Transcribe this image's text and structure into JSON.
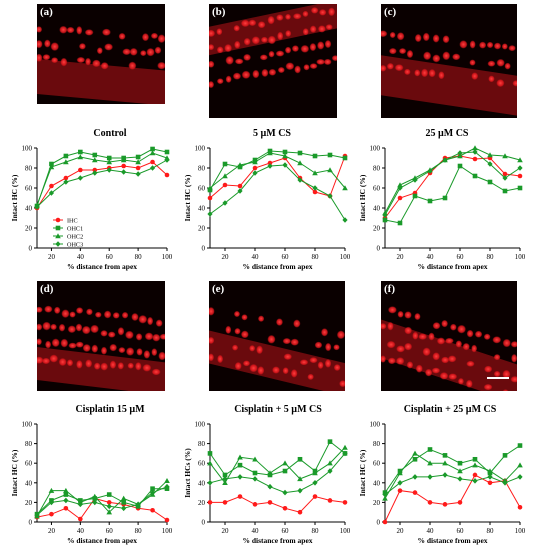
{
  "panels": [
    {
      "label": "(a)"
    },
    {
      "label": "(b)"
    },
    {
      "label": "(c)"
    },
    {
      "label": "(d)"
    },
    {
      "label": "(e)"
    },
    {
      "label": "(f)"
    }
  ],
  "colors": {
    "ihc": "#ff1a1a",
    "ohc": "#1a9a2a",
    "micro_bg": "#0a0000",
    "micro_cell": "#e0161c"
  },
  "chart_data": [
    {
      "type": "line",
      "title": "Control",
      "xlabel": "%  distance from apex",
      "ylabel": "Intact HC (%)",
      "xlim": [
        10,
        100
      ],
      "ylim": [
        0,
        100
      ],
      "xticks": [
        20,
        40,
        60,
        80,
        100
      ],
      "yticks": [
        0,
        20,
        40,
        60,
        80,
        100
      ],
      "legend": {
        "position": "bottom-left-inside",
        "entries": [
          "IHC",
          "OHC1",
          "OHC2",
          "OHC3"
        ]
      },
      "x": [
        10,
        20,
        30,
        40,
        50,
        60,
        70,
        80,
        90,
        100
      ],
      "series": [
        {
          "name": "IHC",
          "marker": "circle",
          "values": [
            40,
            62,
            70,
            78,
            78,
            80,
            82,
            80,
            86,
            73
          ]
        },
        {
          "name": "OHC1",
          "marker": "square",
          "values": [
            42,
            84,
            92,
            96,
            93,
            90,
            90,
            91,
            99,
            96
          ]
        },
        {
          "name": "OHC2",
          "marker": "triangle",
          "values": [
            43,
            81,
            86,
            91,
            88,
            86,
            88,
            86,
            95,
            90
          ]
        },
        {
          "name": "OHC3",
          "marker": "diamond",
          "values": [
            41,
            55,
            66,
            70,
            75,
            78,
            76,
            74,
            80,
            88
          ]
        }
      ]
    },
    {
      "type": "line",
      "title": "5 µM CS",
      "xlabel": "%  distance from apex",
      "ylabel": "Intact HC (%)",
      "xlim": [
        10,
        100
      ],
      "ylim": [
        0,
        100
      ],
      "xticks": [
        20,
        40,
        60,
        80,
        100
      ],
      "yticks": [
        0,
        20,
        40,
        60,
        80,
        100
      ],
      "x": [
        10,
        20,
        30,
        40,
        50,
        60,
        70,
        80,
        90,
        100
      ],
      "series": [
        {
          "name": "IHC",
          "marker": "circle",
          "values": [
            50,
            63,
            62,
            80,
            85,
            90,
            70,
            56,
            52,
            92
          ]
        },
        {
          "name": "OHC1",
          "marker": "square",
          "values": [
            58,
            84,
            81,
            88,
            97,
            96,
            95,
            92,
            93,
            90
          ]
        },
        {
          "name": "OHC2",
          "marker": "triangle",
          "values": [
            60,
            72,
            83,
            86,
            95,
            92,
            85,
            75,
            78,
            60
          ]
        },
        {
          "name": "OHC3",
          "marker": "diamond",
          "values": [
            34,
            45,
            57,
            75,
            82,
            83,
            68,
            60,
            52,
            28
          ]
        }
      ]
    },
    {
      "type": "line",
      "title": "25 µM CS",
      "xlabel": "%  distance from apex",
      "ylabel": "Intact HC (%)",
      "xlim": [
        10,
        100
      ],
      "ylim": [
        0,
        100
      ],
      "xticks": [
        20,
        40,
        60,
        80,
        100
      ],
      "yticks": [
        0,
        20,
        40,
        60,
        80,
        100
      ],
      "x": [
        10,
        20,
        30,
        40,
        50,
        60,
        70,
        80,
        90,
        100
      ],
      "series": [
        {
          "name": "IHC",
          "marker": "circle",
          "values": [
            30,
            50,
            55,
            75,
            90,
            92,
            89,
            90,
            74,
            72
          ]
        },
        {
          "name": "OHC1",
          "marker": "square",
          "values": [
            28,
            25,
            52,
            47,
            50,
            82,
            72,
            66,
            57,
            60
          ]
        },
        {
          "name": "OHC2",
          "marker": "triangle",
          "values": [
            35,
            63,
            70,
            78,
            88,
            92,
            100,
            93,
            92,
            88
          ]
        },
        {
          "name": "OHC3",
          "marker": "diamond",
          "values": [
            33,
            60,
            68,
            77,
            88,
            95,
            96,
            84,
            70,
            80
          ]
        }
      ]
    },
    {
      "type": "line",
      "title": "Cisplatin 15 µM",
      "xlabel": "%  distance from apex",
      "ylabel": "Intact HC (%)",
      "xlim": [
        10,
        100
      ],
      "ylim": [
        0,
        100
      ],
      "xticks": [
        20,
        40,
        60,
        80,
        100
      ],
      "yticks": [
        0,
        20,
        40,
        60,
        80,
        100
      ],
      "x": [
        10,
        20,
        30,
        40,
        50,
        60,
        70,
        80,
        90,
        100
      ],
      "series": [
        {
          "name": "IHC",
          "marker": "circle",
          "values": [
            5,
            8,
            14,
            3,
            24,
            20,
            18,
            14,
            12,
            2
          ]
        },
        {
          "name": "OHC1",
          "marker": "square",
          "values": [
            8,
            22,
            28,
            22,
            24,
            28,
            20,
            16,
            34,
            34
          ]
        },
        {
          "name": "OHC2",
          "marker": "triangle",
          "values": [
            6,
            32,
            32,
            20,
            26,
            10,
            24,
            18,
            28,
            42
          ]
        },
        {
          "name": "OHC3",
          "marker": "diamond",
          "values": [
            7,
            20,
            22,
            18,
            20,
            16,
            14,
            18,
            30,
            36
          ]
        }
      ]
    },
    {
      "type": "line",
      "title": "Cisplatin + 5 µM CS",
      "xlabel": "%  distance from apex",
      "ylabel": "Intact HCs (%)",
      "xlim": [
        10,
        100
      ],
      "ylim": [
        0,
        100
      ],
      "xticks": [
        20,
        40,
        60,
        80,
        100
      ],
      "yticks": [
        0,
        20,
        40,
        60,
        80,
        100
      ],
      "x": [
        10,
        20,
        30,
        40,
        50,
        60,
        70,
        80,
        90,
        100
      ],
      "series": [
        {
          "name": "IHC",
          "marker": "circle",
          "values": [
            20,
            20,
            26,
            18,
            20,
            14,
            10,
            26,
            22,
            20
          ]
        },
        {
          "name": "OHC1",
          "marker": "square",
          "values": [
            70,
            48,
            58,
            50,
            48,
            52,
            64,
            52,
            82,
            70
          ]
        },
        {
          "name": "OHC2",
          "marker": "triangle",
          "values": [
            60,
            40,
            66,
            64,
            50,
            60,
            44,
            50,
            60,
            76
          ]
        },
        {
          "name": "OHC3",
          "marker": "diamond",
          "values": [
            40,
            44,
            46,
            44,
            36,
            30,
            32,
            40,
            52,
            70
          ]
        }
      ]
    },
    {
      "type": "line",
      "title": "Cisplatin + 25 µM CS",
      "xlabel": "%  distance from apex",
      "ylabel": "Intact HC (%)",
      "xlim": [
        10,
        100
      ],
      "ylim": [
        0,
        100
      ],
      "xticks": [
        20,
        40,
        60,
        80,
        100
      ],
      "yticks": [
        0,
        20,
        40,
        60,
        80,
        100
      ],
      "x": [
        10,
        20,
        30,
        40,
        50,
        60,
        70,
        80,
        90,
        100
      ],
      "series": [
        {
          "name": "IHC",
          "marker": "circle",
          "values": [
            0,
            32,
            30,
            20,
            18,
            20,
            48,
            40,
            42,
            15
          ]
        },
        {
          "name": "OHC1",
          "marker": "square",
          "values": [
            30,
            52,
            64,
            74,
            68,
            60,
            64,
            50,
            68,
            78
          ]
        },
        {
          "name": "OHC2",
          "marker": "triangle",
          "values": [
            24,
            50,
            70,
            60,
            60,
            52,
            58,
            52,
            42,
            58
          ]
        },
        {
          "name": "OHC3",
          "marker": "diamond",
          "values": [
            28,
            40,
            46,
            46,
            48,
            44,
            42,
            46,
            40,
            46
          ]
        }
      ]
    }
  ]
}
